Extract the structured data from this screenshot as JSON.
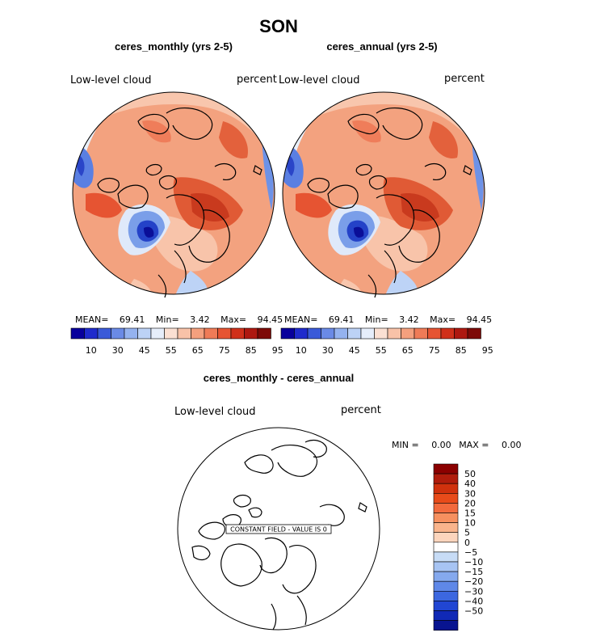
{
  "page": {
    "title": "SON"
  },
  "left_panel": {
    "title": "ceres_monthly (yrs 2-5)",
    "variable": "Low-level cloud",
    "units": "percent",
    "mean_label": "MEAN=",
    "mean": "69.41",
    "min_label": "Min=",
    "min": "3.42",
    "max_label": "Max=",
    "max": "94.45"
  },
  "right_panel": {
    "title": "ceres_annual (yrs 2-5)",
    "variable": "Low-level cloud",
    "units": "percent",
    "mean_label": "MEAN=",
    "mean": "69.41",
    "min_label": "Min=",
    "min": "3.42",
    "max_label": "Max=",
    "max": "94.45"
  },
  "colorbar": {
    "colors": [
      "#08009c",
      "#1f2bcc",
      "#3a5ad8",
      "#6a8ae6",
      "#94b2ef",
      "#bcd2f6",
      "#e6eefb",
      "#fbe0d3",
      "#f8c2a8",
      "#f4a07e",
      "#ef7b57",
      "#e65432",
      "#d0301a",
      "#ae1810",
      "#7d0a07"
    ],
    "tick_labels": [
      "10",
      "30",
      "45",
      "55",
      "65",
      "75",
      "85",
      "95"
    ]
  },
  "diff_panel": {
    "title": "ceres_monthly - ceres_annual",
    "variable": "Low-level cloud",
    "units": "percent",
    "min_label": "MIN =",
    "min": "0.00",
    "max_label": "MAX =",
    "max": "0.00",
    "constant_msg": "CONSTANT FIELD - VALUE IS 0",
    "colors": [
      "#8b0000",
      "#b01c0c",
      "#d0310d",
      "#e84b1a",
      "#f26a3d",
      "#f6905f",
      "#f9b48c",
      "#fcd5bd",
      "#ffffff",
      "#c7dcf6",
      "#a7c4f3",
      "#85a9ee",
      "#5f88e8",
      "#3c67e0",
      "#2146d3",
      "#1029b6",
      "#081490"
    ],
    "tick_labels": [
      "50",
      "40",
      "30",
      "20",
      "15",
      "10",
      "5",
      "0",
      "−5",
      "−10",
      "−15",
      "−20",
      "−30",
      "−40",
      "−50"
    ]
  }
}
